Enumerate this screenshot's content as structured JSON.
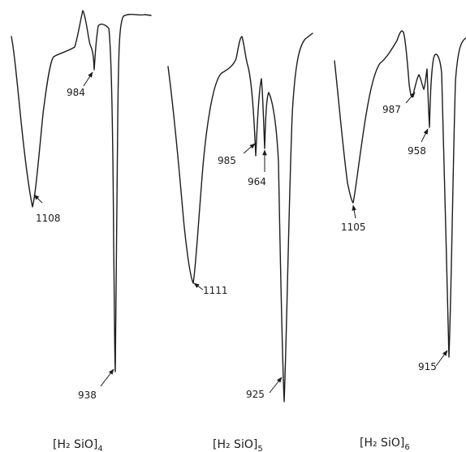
{
  "chart_data": [
    {
      "type": "line",
      "name": "[H2SiO]4",
      "label": {
        "main": "[H₂ SiO]",
        "sub": "4"
      },
      "peaks": [
        {
          "wavenumber": "984"
        },
        {
          "wavenumber": "1108"
        },
        {
          "wavenumber": "938"
        }
      ]
    },
    {
      "type": "line",
      "name": "[H2SiO]5",
      "label": {
        "main": "[H₂ SiO]",
        "sub": "5"
      },
      "peaks": [
        {
          "wavenumber": "985"
        },
        {
          "wavenumber": "964"
        },
        {
          "wavenumber": "1111"
        },
        {
          "wavenumber": "925"
        }
      ]
    },
    {
      "type": "line",
      "name": "[H2SiO]6",
      "label": {
        "main": "[H₂ SiO]",
        "sub": "6"
      },
      "peaks": [
        {
          "wavenumber": "987"
        },
        {
          "wavenumber": "958"
        },
        {
          "wavenumber": "1105"
        },
        {
          "wavenumber": "915"
        }
      ]
    }
  ]
}
